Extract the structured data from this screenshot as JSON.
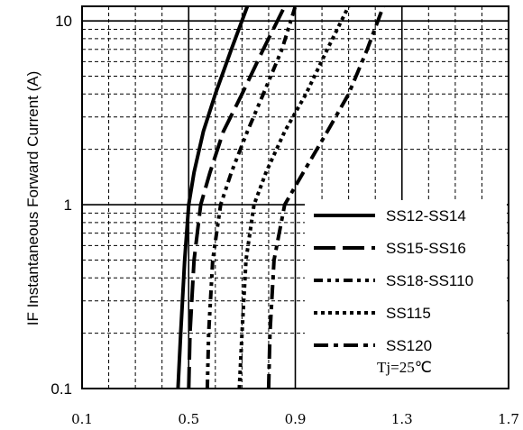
{
  "chart_data": {
    "type": "line",
    "ylabel": "IF Instantaneous Forward Current (A)",
    "xlabel": "",
    "xlim": [
      0.1,
      1.7
    ],
    "ylim": [
      0.1,
      12
    ],
    "y_scale": "log",
    "grid": true,
    "x_ticks": [
      "0.1",
      "0.5",
      "0.9",
      "1.3",
      "1.7"
    ],
    "y_ticks": [
      {
        "value": 0.1,
        "label": "0.1"
      },
      {
        "value": 1,
        "label": "1"
      },
      {
        "value": 10,
        "label": "10"
      }
    ],
    "legend_position": "bottom-right",
    "annotation": "Tj=25℃",
    "series": [
      {
        "name": "SS12-SS14",
        "style": "solid",
        "x": [
          0.46,
          0.47,
          0.485,
          0.5,
          0.52,
          0.555,
          0.6,
          0.66,
          0.72
        ],
        "y": [
          0.1,
          0.2,
          0.5,
          1,
          1.5,
          2.5,
          4,
          7,
          12
        ]
      },
      {
        "name": "SS15-SS16",
        "style": "dash",
        "x": [
          0.5,
          0.505,
          0.52,
          0.545,
          0.58,
          0.63,
          0.7,
          0.78,
          0.86
        ],
        "y": [
          0.1,
          0.2,
          0.5,
          1,
          1.5,
          2.5,
          4,
          7,
          12
        ]
      },
      {
        "name": "SS18-SS110",
        "style": "dashdotdot",
        "x": [
          0.57,
          0.575,
          0.59,
          0.62,
          0.66,
          0.72,
          0.78,
          0.85,
          0.9
        ],
        "y": [
          0.1,
          0.2,
          0.5,
          1,
          1.5,
          2.5,
          4,
          7,
          12
        ]
      },
      {
        "name": "SS115",
        "style": "dotted",
        "x": [
          0.69,
          0.7,
          0.715,
          0.745,
          0.79,
          0.86,
          0.94,
          1.02,
          1.1
        ],
        "y": [
          0.1,
          0.2,
          0.5,
          1,
          1.5,
          2.5,
          4,
          7,
          12
        ]
      },
      {
        "name": "SS120",
        "style": "dashdot",
        "x": [
          0.8,
          0.805,
          0.82,
          0.86,
          0.93,
          1.02,
          1.1,
          1.17,
          1.23
        ],
        "y": [
          0.1,
          0.2,
          0.5,
          1,
          1.5,
          2.5,
          4,
          7,
          12
        ]
      }
    ]
  }
}
